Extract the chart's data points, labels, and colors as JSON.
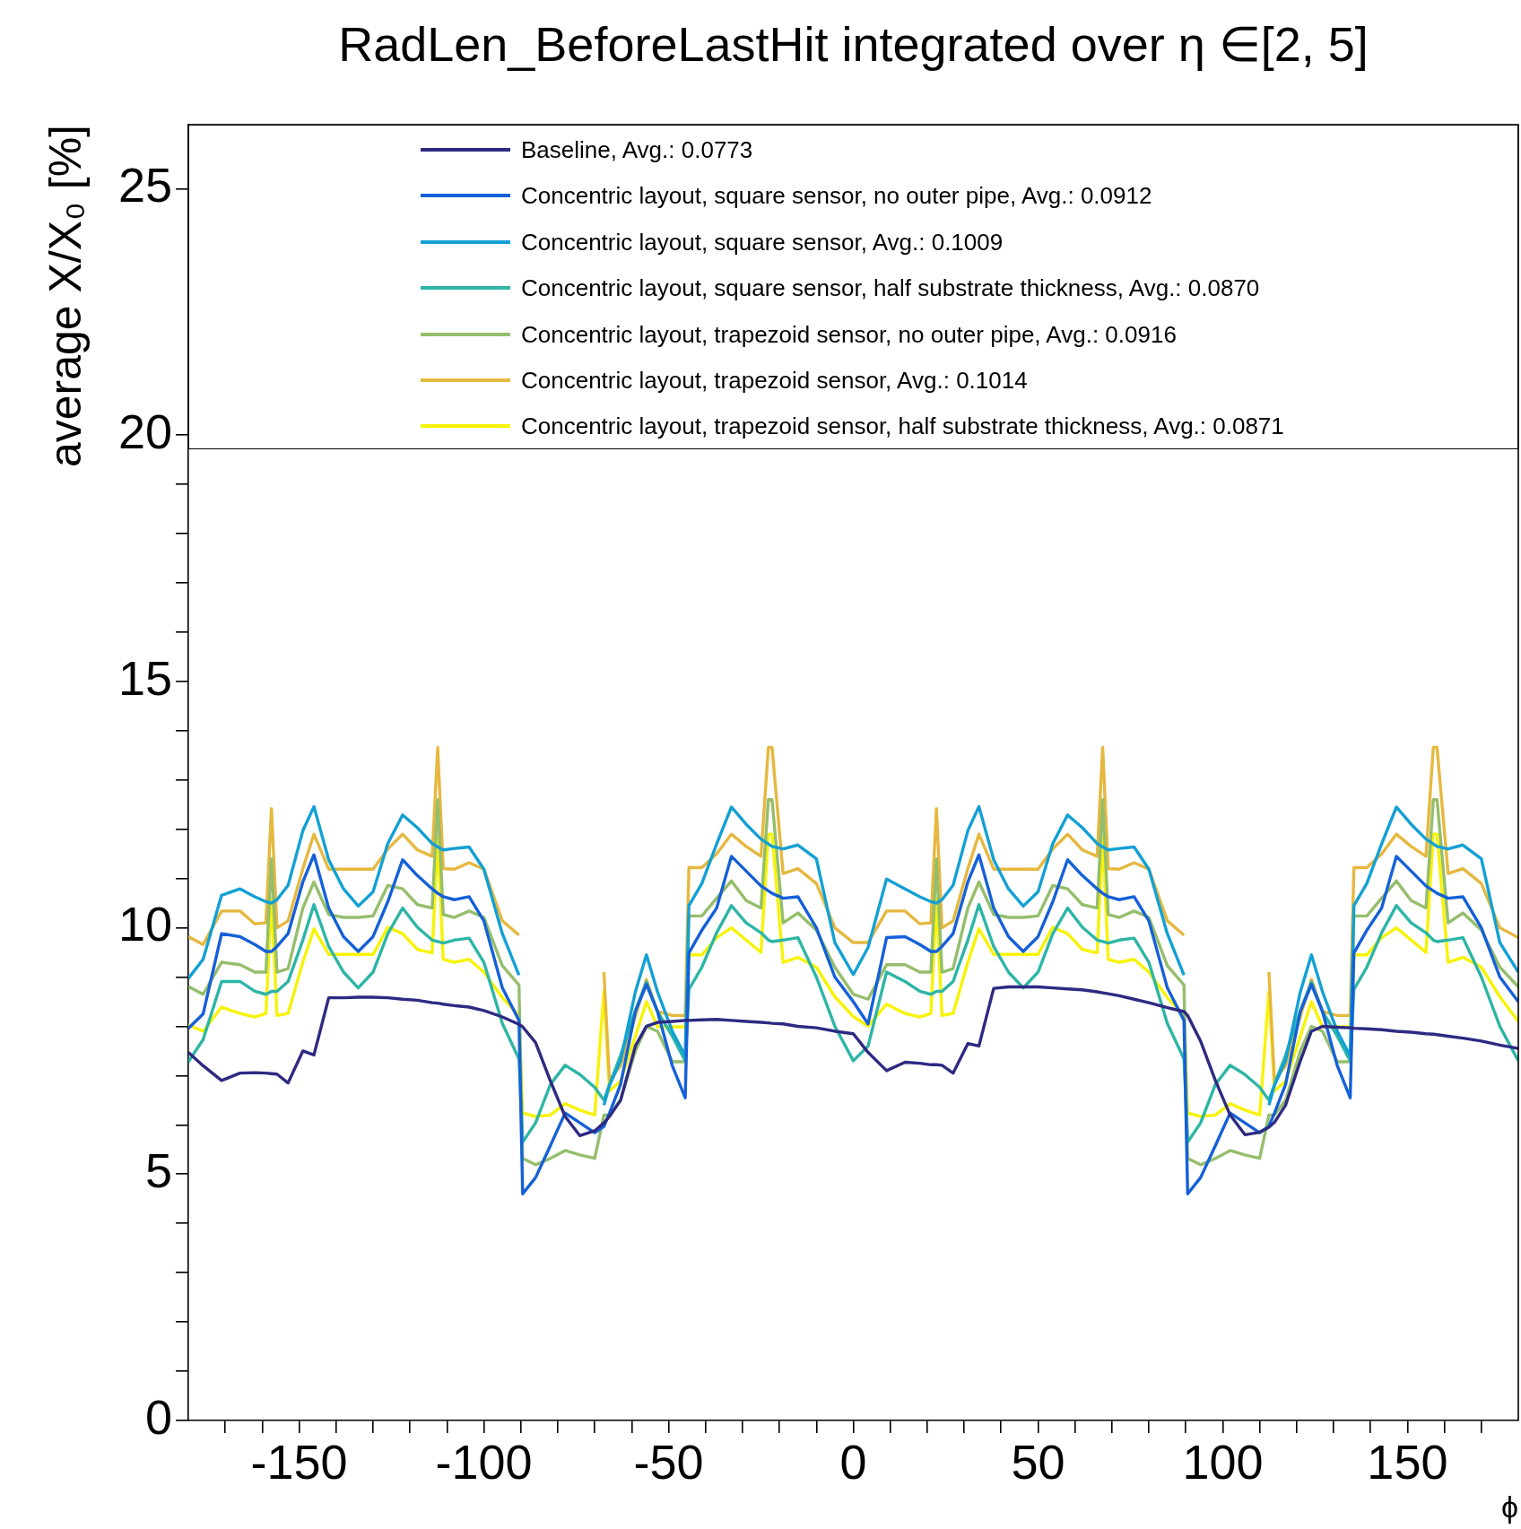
{
  "chart_data": {
    "type": "line",
    "title": "RadLen_BeforeLastHit integrated over η ∈[2, 5]",
    "xlabel": "ϕ",
    "ylabel": "average X/X₀ [%]",
    "legend": "top",
    "marker": "none",
    "xlim": [
      -180,
      180
    ],
    "ylim": [
      0,
      26.3
    ],
    "xticks": [
      {
        "value": -170,
        "label": null
      },
      {
        "value": -160,
        "label": null
      },
      -150,
      {
        "value": -140,
        "label": null
      },
      {
        "value": -130,
        "label": null
      },
      {
        "value": -120,
        "label": null
      },
      {
        "value": -110,
        "label": null
      },
      -100,
      {
        "value": -90,
        "label": null
      },
      {
        "value": -80,
        "label": null
      },
      {
        "value": -70,
        "label": null
      },
      {
        "value": -60,
        "label": null
      },
      -50,
      {
        "value": -40,
        "label": null
      },
      {
        "value": -30,
        "label": null
      },
      {
        "value": -20,
        "label": null
      },
      {
        "value": -10,
        "label": null
      },
      0,
      {
        "value": 10,
        "label": null
      },
      {
        "value": 20,
        "label": null
      },
      {
        "value": 30,
        "label": null
      },
      {
        "value": 40,
        "label": null
      },
      50,
      {
        "value": 60,
        "label": null
      },
      {
        "value": 70,
        "label": null
      },
      {
        "value": 80,
        "label": null
      },
      {
        "value": 90,
        "label": null
      },
      100,
      {
        "value": 110,
        "label": null
      },
      {
        "value": 120,
        "label": null
      },
      {
        "value": 130,
        "label": null
      },
      {
        "value": 140,
        "label": null
      },
      150,
      {
        "value": 160,
        "label": null
      },
      {
        "value": 170,
        "label": null
      }
    ],
    "yticks": [
      0,
      {
        "value": 1,
        "label": null
      },
      {
        "value": 2,
        "label": null
      },
      {
        "value": 3,
        "label": null
      },
      {
        "value": 4,
        "label": null
      },
      5,
      {
        "value": 6,
        "label": null
      },
      {
        "value": 7,
        "label": null
      },
      {
        "value": 8,
        "label": null
      },
      {
        "value": 9,
        "label": null
      },
      10,
      {
        "value": 11,
        "label": null
      },
      {
        "value": 12,
        "label": null
      },
      {
        "value": 13,
        "label": null
      },
      {
        "value": 14,
        "label": null
      },
      15,
      {
        "value": 16,
        "label": null
      },
      {
        "value": 17,
        "label": null
      },
      {
        "value": 18,
        "label": null
      },
      {
        "value": 19,
        "label": null
      },
      20,
      25
    ],
    "x": [
      -180,
      -176,
      -171,
      -166,
      -162,
      -159,
      -157.5,
      -156,
      -153,
      -149,
      -146,
      -142,
      -138,
      -134,
      -130,
      -126,
      -122,
      -118,
      -114,
      -112.5,
      -111,
      -108,
      -104,
      -100,
      -95,
      -90.5,
      -89.5,
      -86,
      -82,
      -78,
      -74,
      -70,
      -67.5,
      -66,
      -63,
      -59,
      -56,
      -53,
      -49,
      -45.5,
      -44.5,
      -41,
      -37,
      -33,
      -29,
      -25,
      -23,
      -22,
      -19,
      -15,
      -10,
      -5,
      0,
      4,
      9,
      14,
      18,
      21,
      22.5,
      24,
      27,
      31,
      34,
      38,
      42,
      46,
      50,
      54,
      58,
      62,
      66,
      67.5,
      69,
      72,
      76,
      80,
      85,
      89.5,
      90.5,
      94,
      98,
      102,
      106,
      110,
      112.5,
      114,
      117,
      121,
      124,
      127,
      131,
      134.5,
      135.5,
      139,
      143,
      147,
      151,
      155,
      157,
      158,
      161,
      165,
      170,
      175,
      180
    ],
    "series": [
      {
        "name": "Baseline, Avg.: 0.0773",
        "color": "#2e2a82",
        "values": [
          7.47,
          7.2,
          6.9,
          7.05,
          7.06,
          7.05,
          7.04,
          7.03,
          6.85,
          7.5,
          7.42,
          8.58,
          8.58,
          8.59,
          8.59,
          8.58,
          8.55,
          8.53,
          8.48,
          8.47,
          8.45,
          8.42,
          8.39,
          8.32,
          8.19,
          8.04,
          7.99,
          7.67,
          6.89,
          6.17,
          5.78,
          5.88,
          6.04,
          6.17,
          6.5,
          7.6,
          8.0,
          8.08,
          8.1,
          8.12,
          8.12,
          8.13,
          8.14,
          8.12,
          8.1,
          8.08,
          8.07,
          8.06,
          8.05,
          8.0,
          7.97,
          7.9,
          7.85,
          7.47,
          7.1,
          7.27,
          7.25,
          7.22,
          7.22,
          7.21,
          7.05,
          7.65,
          7.6,
          8.77,
          8.8,
          8.8,
          8.8,
          8.78,
          8.76,
          8.74,
          8.7,
          8.68,
          8.66,
          8.62,
          8.55,
          8.48,
          8.38,
          8.3,
          8.22,
          7.7,
          6.9,
          6.2,
          5.8,
          5.85,
          5.95,
          6.05,
          6.4,
          7.3,
          7.9,
          8.0,
          7.98,
          7.97,
          7.96,
          7.95,
          7.93,
          7.9,
          7.88,
          7.85,
          7.84,
          7.83,
          7.8,
          7.76,
          7.7,
          7.62,
          7.55
        ]
      },
      {
        "name": "Concentric layout, square sensor, no outer pipe, Avg.: 0.0912",
        "color": "#1560d8",
        "values": [
          7.96,
          8.25,
          9.88,
          9.82,
          9.66,
          9.52,
          9.52,
          9.62,
          9.88,
          10.93,
          11.48,
          10.4,
          9.82,
          9.52,
          9.82,
          10.53,
          11.38,
          11.06,
          10.79,
          10.7,
          10.63,
          10.57,
          10.63,
          10.14,
          8.78,
          8.12,
          4.6,
          4.93,
          5.58,
          6.24,
          6.04,
          5.84,
          5.97,
          6.24,
          6.82,
          8.3,
          8.85,
          8.3,
          7.2,
          6.55,
          9.49,
          9.95,
          10.4,
          11.45,
          11.15,
          10.85,
          10.75,
          10.7,
          10.6,
          10.63,
          10.0,
          9.0,
          8.5,
          8.05,
          9.8,
          9.82,
          9.66,
          9.52,
          9.52,
          9.62,
          9.88,
          10.93,
          11.48,
          10.4,
          9.82,
          9.52,
          9.82,
          10.53,
          11.38,
          11.06,
          10.79,
          10.7,
          10.63,
          10.57,
          10.63,
          10.14,
          8.78,
          8.12,
          4.6,
          4.93,
          5.58,
          6.24,
          6.04,
          5.84,
          5.97,
          6.24,
          6.82,
          8.3,
          8.85,
          8.3,
          7.2,
          6.55,
          9.49,
          9.95,
          10.4,
          11.45,
          11.15,
          10.85,
          10.75,
          10.7,
          10.6,
          10.63,
          10.0,
          9.0,
          8.5
        ]
      },
      {
        "name": "Concentric layout, square sensor, Avg.: 0.1009",
        "color": "#13a0d4",
        "values": [
          8.97,
          9.36,
          10.66,
          10.79,
          10.63,
          10.53,
          10.5,
          10.57,
          10.86,
          11.97,
          12.46,
          11.38,
          10.79,
          10.44,
          10.73,
          11.71,
          12.29,
          12.03,
          11.71,
          11.64,
          11.58,
          11.61,
          11.64,
          11.19,
          9.88,
          9.04,
          null,
          null,
          null,
          null,
          null,
          null,
          6.4,
          6.8,
          7.3,
          8.7,
          9.45,
          8.7,
          7.9,
          7.4,
          10.45,
          10.9,
          11.7,
          12.45,
          12.1,
          11.8,
          11.7,
          11.65,
          11.6,
          11.68,
          11.4,
          9.7,
          9.05,
          9.6,
          10.99,
          10.79,
          10.63,
          10.53,
          10.5,
          10.57,
          10.86,
          11.97,
          12.46,
          11.38,
          10.79,
          10.44,
          10.73,
          11.71,
          12.29,
          12.03,
          11.71,
          11.64,
          11.58,
          11.61,
          11.64,
          11.19,
          9.88,
          9.04,
          null,
          null,
          null,
          null,
          null,
          null,
          6.4,
          6.8,
          7.3,
          8.7,
          9.45,
          8.7,
          7.9,
          7.4,
          10.45,
          10.9,
          11.7,
          12.45,
          12.1,
          11.8,
          11.7,
          11.65,
          11.6,
          11.68,
          11.4,
          9.7,
          9.1
        ]
      },
      {
        "name": "Concentric layout, square sensor, half substrate thickness, Avg.: 0.0870",
        "color": "#2db5a6",
        "values": [
          7.28,
          7.73,
          8.91,
          8.91,
          8.71,
          8.65,
          8.71,
          8.71,
          8.91,
          9.75,
          10.47,
          9.62,
          9.1,
          8.78,
          9.1,
          9.88,
          10.4,
          10.01,
          9.75,
          9.72,
          9.69,
          9.75,
          9.79,
          9.3,
          8.06,
          7.34,
          5.65,
          6.04,
          6.82,
          7.21,
          7.02,
          6.76,
          6.5,
          6.82,
          7.41,
          8.32,
          8.9,
          8.3,
          7.8,
          7.3,
          8.75,
          9.2,
          9.9,
          10.45,
          10.1,
          9.9,
          9.75,
          9.72,
          9.75,
          9.8,
          9.0,
          8.0,
          7.3,
          7.6,
          9.1,
          8.91,
          8.71,
          8.65,
          8.71,
          8.71,
          8.91,
          9.75,
          10.47,
          9.62,
          9.1,
          8.78,
          9.1,
          9.88,
          10.4,
          10.01,
          9.75,
          9.72,
          9.69,
          9.75,
          9.79,
          9.3,
          8.06,
          7.34,
          5.65,
          6.04,
          6.82,
          7.21,
          7.02,
          6.76,
          6.5,
          6.82,
          7.41,
          8.32,
          8.9,
          8.3,
          7.8,
          7.3,
          8.75,
          9.2,
          9.9,
          10.45,
          10.1,
          9.9,
          9.75,
          9.72,
          9.75,
          9.8,
          9.0,
          8.0,
          7.3
        ]
      },
      {
        "name": "Concentric layout, trapezoid sensor, no outer pipe, Avg.: 0.0916",
        "color": "#95be6c",
        "values": [
          8.81,
          8.65,
          9.3,
          9.25,
          9.1,
          9.1,
          11.4,
          9.1,
          9.17,
          10.4,
          10.93,
          10.27,
          10.21,
          10.21,
          10.24,
          10.86,
          10.79,
          10.47,
          10.4,
          12.6,
          10.27,
          10.21,
          10.34,
          10.21,
          9.23,
          8.84,
          5.32,
          5.19,
          5.32,
          5.48,
          5.39,
          5.32,
          6.2,
          6.2,
          6.5,
          7.5,
          8.0,
          7.9,
          7.28,
          7.28,
          10.24,
          10.24,
          10.6,
          10.95,
          10.55,
          10.4,
          12.6,
          12.6,
          10.1,
          10.3,
          9.95,
          9.2,
          8.65,
          8.55,
          9.25,
          9.25,
          9.1,
          9.1,
          11.4,
          9.1,
          9.17,
          10.4,
          10.93,
          10.27,
          10.21,
          10.21,
          10.24,
          10.86,
          10.79,
          10.47,
          10.4,
          12.6,
          10.27,
          10.21,
          10.34,
          10.21,
          9.23,
          8.84,
          5.32,
          5.19,
          5.32,
          5.48,
          5.39,
          5.32,
          6.2,
          6.2,
          6.5,
          7.5,
          8.0,
          7.9,
          7.28,
          7.28,
          10.24,
          10.24,
          10.6,
          10.95,
          10.55,
          10.4,
          12.6,
          12.6,
          10.1,
          10.3,
          9.95,
          9.2,
          8.8
        ]
      },
      {
        "name": "Concentric layout, trapezoid sensor, Avg.: 0.1014",
        "color": "#e6b83f",
        "values": [
          9.82,
          9.66,
          10.34,
          10.34,
          10.08,
          10.1,
          12.42,
          10.0,
          10.14,
          11.2,
          11.9,
          11.19,
          11.19,
          11.19,
          11.19,
          11.6,
          11.9,
          11.58,
          11.45,
          13.66,
          11.2,
          11.19,
          11.32,
          11.19,
          10.14,
          9.85,
          null,
          null,
          null,
          null,
          null,
          null,
          9.1,
          6.9,
          7.2,
          8.2,
          8.95,
          8.3,
          8.22,
          8.22,
          11.22,
          11.22,
          11.5,
          11.9,
          11.65,
          11.45,
          13.66,
          13.66,
          11.1,
          11.2,
          10.9,
          10.0,
          9.7,
          9.7,
          10.34,
          10.34,
          10.08,
          10.1,
          12.42,
          10.0,
          10.14,
          11.2,
          11.9,
          11.19,
          11.19,
          11.19,
          11.19,
          11.6,
          11.9,
          11.58,
          11.45,
          13.66,
          11.2,
          11.19,
          11.32,
          11.19,
          10.14,
          9.85,
          null,
          null,
          null,
          null,
          null,
          null,
          9.1,
          6.9,
          7.2,
          8.2,
          8.95,
          8.3,
          8.22,
          8.22,
          11.22,
          11.22,
          11.5,
          11.9,
          11.65,
          11.45,
          13.66,
          13.66,
          11.1,
          11.2,
          10.9,
          10.0,
          9.8
        ]
      },
      {
        "name": "Concentric layout, trapezoid sensor, half substrate thickness, Avg.: 0.0871",
        "color": "#f7f307",
        "values": [
          8.03,
          7.9,
          8.39,
          8.26,
          8.19,
          8.26,
          10.6,
          8.22,
          8.26,
          9.3,
          9.98,
          9.46,
          9.46,
          9.46,
          9.46,
          10.01,
          9.88,
          9.56,
          9.49,
          11.84,
          9.36,
          9.3,
          9.36,
          9.1,
          8.58,
          8.22,
          6.24,
          6.17,
          6.2,
          6.43,
          6.3,
          6.2,
          8.71,
          6.69,
          6.89,
          7.8,
          8.5,
          7.99,
          7.99,
          7.99,
          9.45,
          9.45,
          9.8,
          10.0,
          9.75,
          9.5,
          11.9,
          11.9,
          9.3,
          9.4,
          9.2,
          8.6,
          8.2,
          8.0,
          8.45,
          8.26,
          8.19,
          8.26,
          10.6,
          8.22,
          8.26,
          9.3,
          9.98,
          9.46,
          9.46,
          9.46,
          9.46,
          10.01,
          9.88,
          9.56,
          9.49,
          11.84,
          9.36,
          9.3,
          9.36,
          9.1,
          8.58,
          8.22,
          6.24,
          6.17,
          6.2,
          6.43,
          6.3,
          6.2,
          8.71,
          6.69,
          6.89,
          7.8,
          8.5,
          7.99,
          7.99,
          7.99,
          9.45,
          9.45,
          9.8,
          10.0,
          9.75,
          9.5,
          11.9,
          11.9,
          9.3,
          9.4,
          9.2,
          8.6,
          8.1
        ]
      }
    ]
  }
}
